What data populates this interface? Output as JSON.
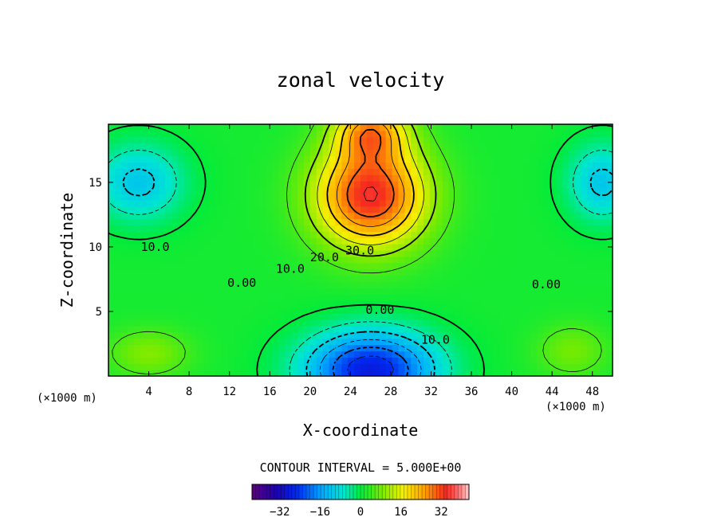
{
  "chart_data": {
    "type": "heatmap",
    "title": "zonal velocity",
    "xlabel": "X-coordinate",
    "ylabel": "Z-coordinate",
    "x_unit_left": "(×1000 m)",
    "x_unit_right": "(×1000 m)",
    "xlim": [
      0,
      50
    ],
    "ylim": [
      0,
      19.5
    ],
    "x_ticks": [
      4,
      8,
      12,
      16,
      20,
      24,
      28,
      32,
      36,
      40,
      44,
      48
    ],
    "y_ticks": [
      5,
      10,
      15
    ],
    "contour_interval_text": "CONTOUR INTERVAL = 5.000E+00",
    "contour_interval": 5,
    "contour_labels": [
      {
        "text": "10.0",
        "x": 3.2,
        "y": 9.7
      },
      {
        "text": "10.0",
        "x": 16.6,
        "y": 8.0
      },
      {
        "text": "20.0",
        "x": 20.0,
        "y": 8.9
      },
      {
        "text": "30.0",
        "x": 23.5,
        "y": 9.4
      },
      {
        "text": "0.00",
        "x": 11.8,
        "y": 6.9
      },
      {
        "text": "0.00",
        "x": 25.5,
        "y": 4.8
      },
      {
        "text": "0.00",
        "x": 42.0,
        "y": 6.8
      },
      {
        "text": "10.0",
        "x": 31.0,
        "y": 2.5
      }
    ],
    "velocity_extrema": [
      {
        "x": 26,
        "z": 14.0,
        "value": 34
      },
      {
        "x": 26,
        "z": 19.0,
        "value": 22
      },
      {
        "x": 26,
        "z": 0.5,
        "value": -30
      },
      {
        "x": 3,
        "z": 15.0,
        "value": -13
      },
      {
        "x": 49,
        "z": 15.0,
        "value": -13
      },
      {
        "x": 4,
        "z": 1.8,
        "value": 8
      },
      {
        "x": 46,
        "z": 2.0,
        "value": 7
      }
    ],
    "colorbar": {
      "min": -43,
      "max": 43,
      "ticks": [
        -32,
        -16,
        0,
        16,
        32
      ]
    }
  },
  "colors": {
    "background": "#ffffff",
    "axes": "#000000"
  }
}
